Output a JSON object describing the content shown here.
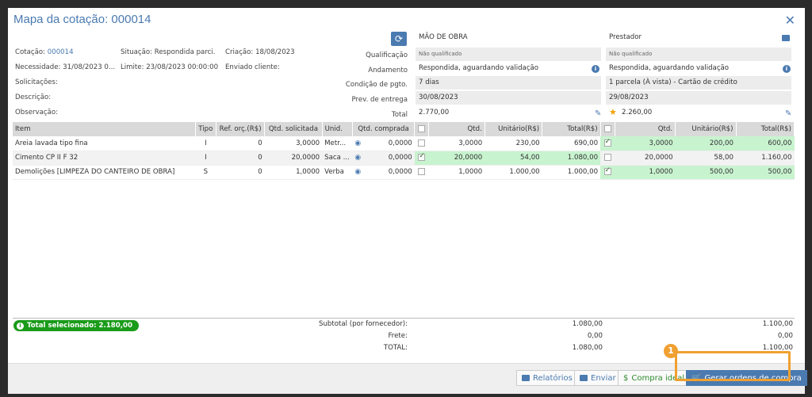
{
  "title": "Mapa da cotação: 000014",
  "info": {
    "cotacao_label": "Cotação: ",
    "cotacao_value": "000014",
    "situacao": "Situação: Respondida parci...",
    "criacao": "Criação: 18/08/2023",
    "necessidade": "Necessidade: 31/08/2023 0...",
    "limite": "Limite: 23/08/2023 00:00:00",
    "enviado": "Enviado cliente:",
    "solicitacoes": "Solicitações:",
    "descricao": "Descrição:",
    "observacao": "Observação:"
  },
  "row_labels": {
    "qualificacao": "Qualificação",
    "andamento": "Andamento",
    "condicao": "Condição de pgto.",
    "prev_entrega": "Prev. de entrega",
    "total": "Total"
  },
  "suppliers": [
    {
      "name": "MÃO DE OBRA",
      "qualificacao": "Não qualificado",
      "andamento": "Respondida, aguardando validação",
      "condicao": "7 dias",
      "prev_entrega": "30/08/2023",
      "total": "2.770,00"
    },
    {
      "name": "Prestador",
      "qualificacao": "Não qualificado",
      "andamento": "Respondida, aguardando validação",
      "condicao": "1 parcela (À vista) - Cartão de crédito",
      "prev_entrega": "29/08/2023",
      "total": "2.260,00"
    }
  ],
  "table": {
    "headers": [
      "Item",
      "Tipo",
      "Ref. orç.(R$)",
      "Qtd. solicitada",
      "Unid.",
      "Qtd. comprada",
      "Qtd.",
      "Unitário(R$)",
      "Total(R$)",
      "Qtd.",
      "Unitário(R$)",
      "Total(R$)"
    ],
    "rows": [
      {
        "item": "Areia lavada tipo fina",
        "tipo": "I",
        "ref": "0",
        "qtd_sol": "3,0000",
        "unid": "Metr...",
        "qtd_comp": "0,0000",
        "s1_qtd": "3,0000",
        "s1_unit": "230,00",
        "s1_total": "690,00",
        "s2_qtd": "3,0000",
        "s2_unit": "200,00",
        "s2_total": "600,00"
      },
      {
        "item": "Cimento CP II F 32",
        "tipo": "I",
        "ref": "0",
        "qtd_sol": "20,0000",
        "unid": "Saca ...",
        "qtd_comp": "0,0000",
        "s1_qtd": "20,0000",
        "s1_unit": "54,00",
        "s1_total": "1.080,00",
        "s2_qtd": "20,0000",
        "s2_unit": "58,00",
        "s2_total": "1.160,00"
      },
      {
        "item": "Demolições [LIMPEZA DO CANTEIRO DE OBRA]",
        "tipo": "S",
        "ref": "0",
        "qtd_sol": "1,0000",
        "unid": "Verba",
        "qtd_comp": "0,0000",
        "s1_qtd": "1,0000",
        "s1_unit": "1.000,00",
        "s1_total": "1.000,00",
        "s2_qtd": "1,0000",
        "s2_unit": "500,00",
        "s2_total": "500,00"
      }
    ]
  },
  "summary": {
    "total_selecionado": "Total selecionado:  2.180,00",
    "subtotal_label": "Subtotal (por fornecedor):",
    "frete_label": "Frete:",
    "total_label": "TOTAL:",
    "s1": {
      "subtotal": "1.080,00",
      "frete": "0,00",
      "total": "1.080,00"
    },
    "s2": {
      "subtotal": "1.100,00",
      "frete": "0,00",
      "total": "1.100,00"
    }
  },
  "footer": {
    "relatorios": "Relatórios",
    "enviar": "Enviar",
    "compra_ideal": "Compra ideal",
    "gerar": "Gerar ordens de compra"
  },
  "callout_number": "1",
  "colors": {
    "accent": "#4a7ab0",
    "green_cell": "#c8f3cf",
    "badge": "#1a9b1a",
    "highlight": "#f0a030"
  }
}
